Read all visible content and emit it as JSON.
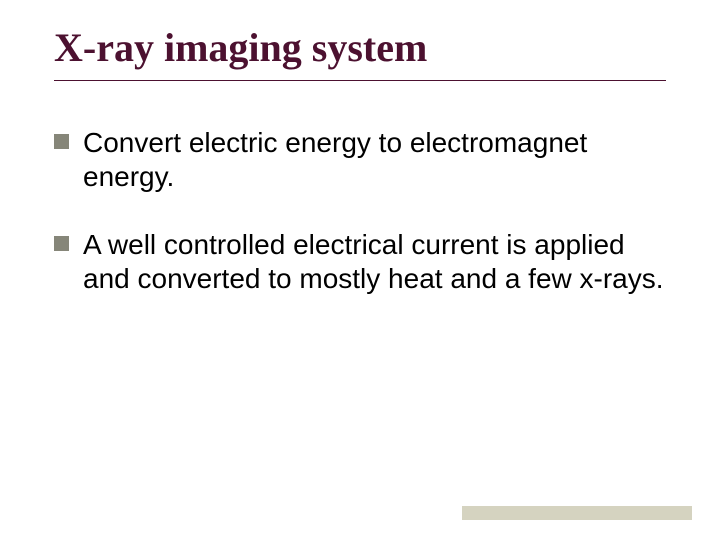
{
  "slide": {
    "title": "X-ray imaging system",
    "title_color": "#4c1130",
    "title_fontsize": 40,
    "title_fontfamily": "Times New Roman",
    "underline_color": "#4c1130",
    "bullets": [
      {
        "text": "Convert electric energy to electromagnet energy."
      },
      {
        "text": "A well controlled electrical current is applied and converted to mostly heat and a few x-rays."
      }
    ],
    "bullet_marker_color": "#868679",
    "body_text_color": "#000000",
    "body_fontsize": 28,
    "body_fontfamily": "Arial",
    "accent_bar_color": "#d5d3c0",
    "background_color": "#ffffff"
  }
}
